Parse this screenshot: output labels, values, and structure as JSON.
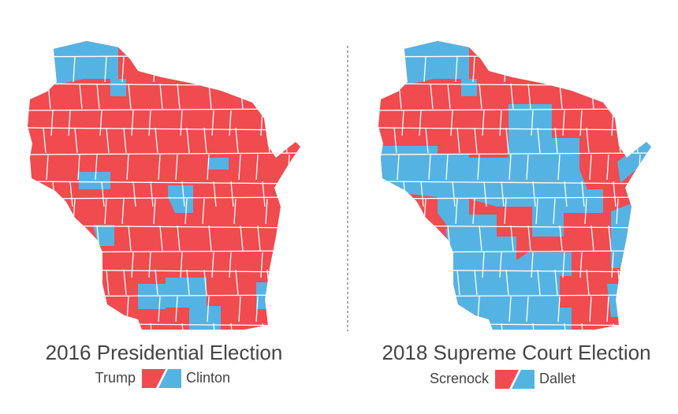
{
  "maps": [
    {
      "title": "2016 Presidential Election",
      "legend": [
        {
          "label": "Trump",
          "color": "#f04b4f"
        },
        {
          "label": "Clinton",
          "color": "#55b3e3"
        }
      ]
    },
    {
      "title": "2018 Supreme Court Election",
      "legend": [
        {
          "label": "Screnock",
          "color": "#f04b4f"
        },
        {
          "label": "Dallet",
          "color": "#55b3e3"
        }
      ]
    }
  ]
}
